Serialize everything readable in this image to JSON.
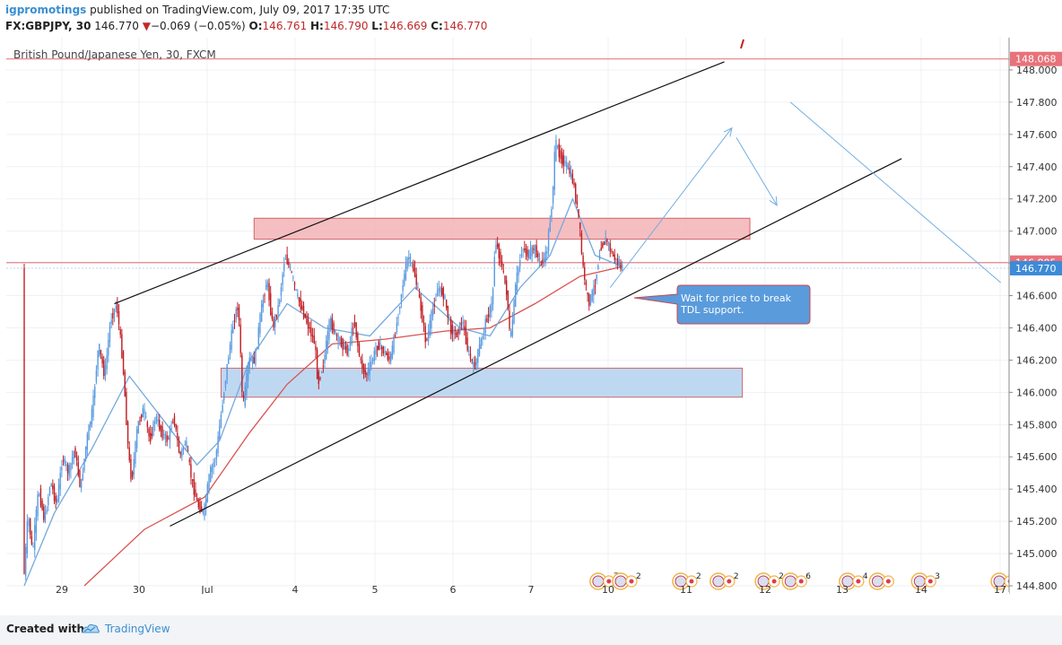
{
  "header": {
    "user": "igpromotings",
    "published_text": " published on TradingView.com, July 09, 2017 17:35 UTC",
    "symbol": "FX:GBPJPY, 30",
    "price": "146.770",
    "change": "−0.069 (−0.05%)",
    "o_label": "O:",
    "o_value": "146.761",
    "h_label": "H:",
    "h_value": "146.790",
    "l_label": "L:",
    "l_value": "146.669",
    "c_label": "C:",
    "c_value": "146.770"
  },
  "footer": {
    "created_with": "Created with",
    "brand": "TradingView"
  },
  "colors": {
    "up": "#5b9be0",
    "down": "#c01e24",
    "ma_fast": "#74a9dd",
    "ma_slow": "#d9534f",
    "resistance_fill": "#f3b3b6",
    "support_fill": "#b8d4ef",
    "channel": "#111111",
    "annotation_arrow": "#74aee0",
    "price_badge": "#3d8bd7",
    "level_line": "#e26d74"
  },
  "chart_data": {
    "type": "candlestick",
    "title": "British Pound/Japanese Yen, 30, FXCM",
    "x_tick_labels": [
      "29",
      "30",
      "Jul",
      "4",
      "5",
      "6",
      "7",
      "10",
      "11",
      "12",
      "13",
      "14",
      "17"
    ],
    "y_ticks": [
      "148.000",
      "147.800",
      "147.600",
      "147.400",
      "147.200",
      "147.000",
      "146.800",
      "146.600",
      "146.400",
      "146.200",
      "146.000",
      "145.800",
      "145.600",
      "145.400",
      "145.200",
      "145.000",
      "144.800"
    ],
    "ylim": [
      144.75,
      148.2
    ],
    "grid": true,
    "last_price": 146.77,
    "level_lines": [
      148.068,
      146.805
    ],
    "path_points": [
      [
        0,
        144.8
      ],
      [
        3,
        145.25
      ],
      [
        6,
        145.0
      ],
      [
        10,
        145.4
      ],
      [
        14,
        145.2
      ],
      [
        18,
        145.45
      ],
      [
        22,
        145.3
      ],
      [
        26,
        145.6
      ],
      [
        30,
        145.5
      ],
      [
        34,
        145.65
      ],
      [
        38,
        145.4
      ],
      [
        42,
        145.7
      ],
      [
        46,
        145.9
      ],
      [
        50,
        146.3
      ],
      [
        54,
        146.1
      ],
      [
        58,
        146.45
      ],
      [
        62,
        146.55
      ],
      [
        66,
        146.2
      ],
      [
        70,
        145.6
      ],
      [
        72,
        145.45
      ],
      [
        76,
        145.8
      ],
      [
        80,
        145.9
      ],
      [
        84,
        145.7
      ],
      [
        88,
        145.85
      ],
      [
        92,
        145.75
      ],
      [
        96,
        145.7
      ],
      [
        100,
        145.85
      ],
      [
        104,
        145.6
      ],
      [
        108,
        145.7
      ],
      [
        112,
        145.45
      ],
      [
        116,
        145.3
      ],
      [
        120,
        145.25
      ],
      [
        124,
        145.5
      ],
      [
        128,
        145.6
      ],
      [
        132,
        145.9
      ],
      [
        136,
        146.2
      ],
      [
        140,
        146.45
      ],
      [
        143,
        146.55
      ],
      [
        146,
        145.9
      ],
      [
        150,
        146.2
      ],
      [
        154,
        146.2
      ],
      [
        158,
        146.5
      ],
      [
        162,
        146.7
      ],
      [
        166,
        146.4
      ],
      [
        170,
        146.55
      ],
      [
        174,
        146.85
      ],
      [
        178,
        146.75
      ],
      [
        182,
        146.6
      ],
      [
        186,
        146.5
      ],
      [
        190,
        146.4
      ],
      [
        194,
        146.3
      ],
      [
        196,
        146.05
      ],
      [
        200,
        146.2
      ],
      [
        204,
        146.45
      ],
      [
        208,
        146.35
      ],
      [
        212,
        146.3
      ],
      [
        216,
        146.25
      ],
      [
        220,
        146.45
      ],
      [
        224,
        146.2
      ],
      [
        228,
        146.1
      ],
      [
        232,
        146.2
      ],
      [
        236,
        146.3
      ],
      [
        240,
        146.25
      ],
      [
        244,
        146.2
      ],
      [
        248,
        146.4
      ],
      [
        252,
        146.65
      ],
      [
        256,
        146.85
      ],
      [
        260,
        146.75
      ],
      [
        264,
        146.55
      ],
      [
        268,
        146.3
      ],
      [
        272,
        146.5
      ],
      [
        276,
        146.65
      ],
      [
        280,
        146.6
      ],
      [
        284,
        146.4
      ],
      [
        288,
        146.35
      ],
      [
        292,
        146.45
      ],
      [
        296,
        146.25
      ],
      [
        300,
        146.15
      ],
      [
        304,
        146.3
      ],
      [
        308,
        146.45
      ],
      [
        312,
        146.55
      ],
      [
        314,
        146.95
      ],
      [
        318,
        146.8
      ],
      [
        322,
        146.6
      ],
      [
        324,
        146.3
      ],
      [
        328,
        146.7
      ],
      [
        332,
        146.9
      ],
      [
        336,
        146.85
      ],
      [
        340,
        146.9
      ],
      [
        344,
        146.8
      ],
      [
        348,
        146.85
      ],
      [
        352,
        147.2
      ],
      [
        354,
        147.55
      ],
      [
        358,
        147.45
      ],
      [
        362,
        147.4
      ],
      [
        366,
        147.3
      ],
      [
        370,
        147.05
      ],
      [
        372,
        146.8
      ],
      [
        376,
        146.55
      ],
      [
        380,
        146.65
      ],
      [
        384,
        146.9
      ],
      [
        388,
        146.95
      ],
      [
        392,
        146.85
      ],
      [
        396,
        146.8
      ],
      [
        398,
        146.77
      ]
    ],
    "fast_ma_points": [
      [
        0,
        144.8
      ],
      [
        20,
        145.25
      ],
      [
        45,
        145.65
      ],
      [
        70,
        146.1
      ],
      [
        95,
        145.8
      ],
      [
        115,
        145.55
      ],
      [
        130,
        145.7
      ],
      [
        150,
        146.2
      ],
      [
        175,
        146.55
      ],
      [
        200,
        146.4
      ],
      [
        230,
        146.35
      ],
      [
        260,
        146.65
      ],
      [
        290,
        146.4
      ],
      [
        310,
        146.35
      ],
      [
        330,
        146.65
      ],
      [
        350,
        146.85
      ],
      [
        365,
        147.2
      ],
      [
        380,
        146.85
      ],
      [
        398,
        146.78
      ]
    ],
    "slow_ma_points": [
      [
        40,
        144.8
      ],
      [
        80,
        145.15
      ],
      [
        120,
        145.35
      ],
      [
        150,
        145.75
      ],
      [
        175,
        146.05
      ],
      [
        205,
        146.3
      ],
      [
        240,
        146.33
      ],
      [
        280,
        146.38
      ],
      [
        310,
        146.4
      ],
      [
        340,
        146.55
      ],
      [
        370,
        146.72
      ],
      [
        398,
        146.78
      ]
    ],
    "channel_lines": [
      {
        "from": [
          60,
          146.55
        ],
        "to": [
          466,
          148.05
        ]
      },
      {
        "from": [
          97,
          145.17
        ],
        "to": [
          584,
          147.45
        ]
      }
    ],
    "zones": [
      {
        "name": "resistance",
        "x0": 153,
        "x1": 483,
        "y0": 146.95,
        "y1": 147.08
      },
      {
        "name": "support",
        "x0": 131,
        "x1": 478,
        "y0": 145.97,
        "y1": 146.15
      }
    ],
    "arrows": [
      {
        "from": [
          390,
          146.65
        ],
        "to": [
          471,
          147.64
        ]
      },
      {
        "from": [
          474,
          147.58
        ],
        "to": [
          501,
          147.16
        ]
      },
      {
        "from": [
          510,
          147.8
        ],
        "to": [
          650,
          146.68
        ]
      }
    ],
    "callout": {
      "text_line1": "Wait for price to break",
      "text_line2": "TDL support."
    },
    "event_groups": [
      {
        "x": 382,
        "count": "7"
      },
      {
        "x": 397,
        "count": "2"
      },
      {
        "x": 437,
        "count": "2"
      },
      {
        "x": 462,
        "count": "2"
      },
      {
        "x": 492,
        "count": "2"
      },
      {
        "x": 510,
        "count": "6"
      },
      {
        "x": 548,
        "count": "4"
      },
      {
        "x": 568,
        "count": ""
      },
      {
        "x": 596,
        "count": "3"
      },
      {
        "x": 649,
        "count": "2"
      }
    ]
  }
}
